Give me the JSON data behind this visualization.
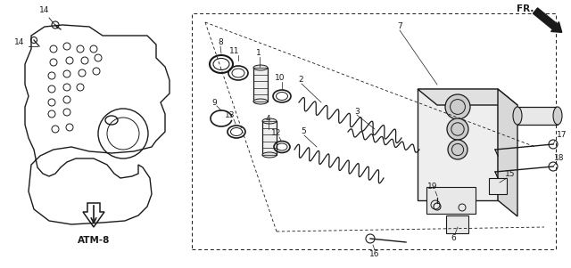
{
  "background_color": "#ffffff",
  "fig_width": 6.4,
  "fig_height": 3.01,
  "dpi": 100,
  "label_ATM8": "ATM-8",
  "label_FR": "FR.",
  "line_color": "#1a1a1a",
  "text_color": "#1a1a1a",
  "lw_main": 0.9
}
